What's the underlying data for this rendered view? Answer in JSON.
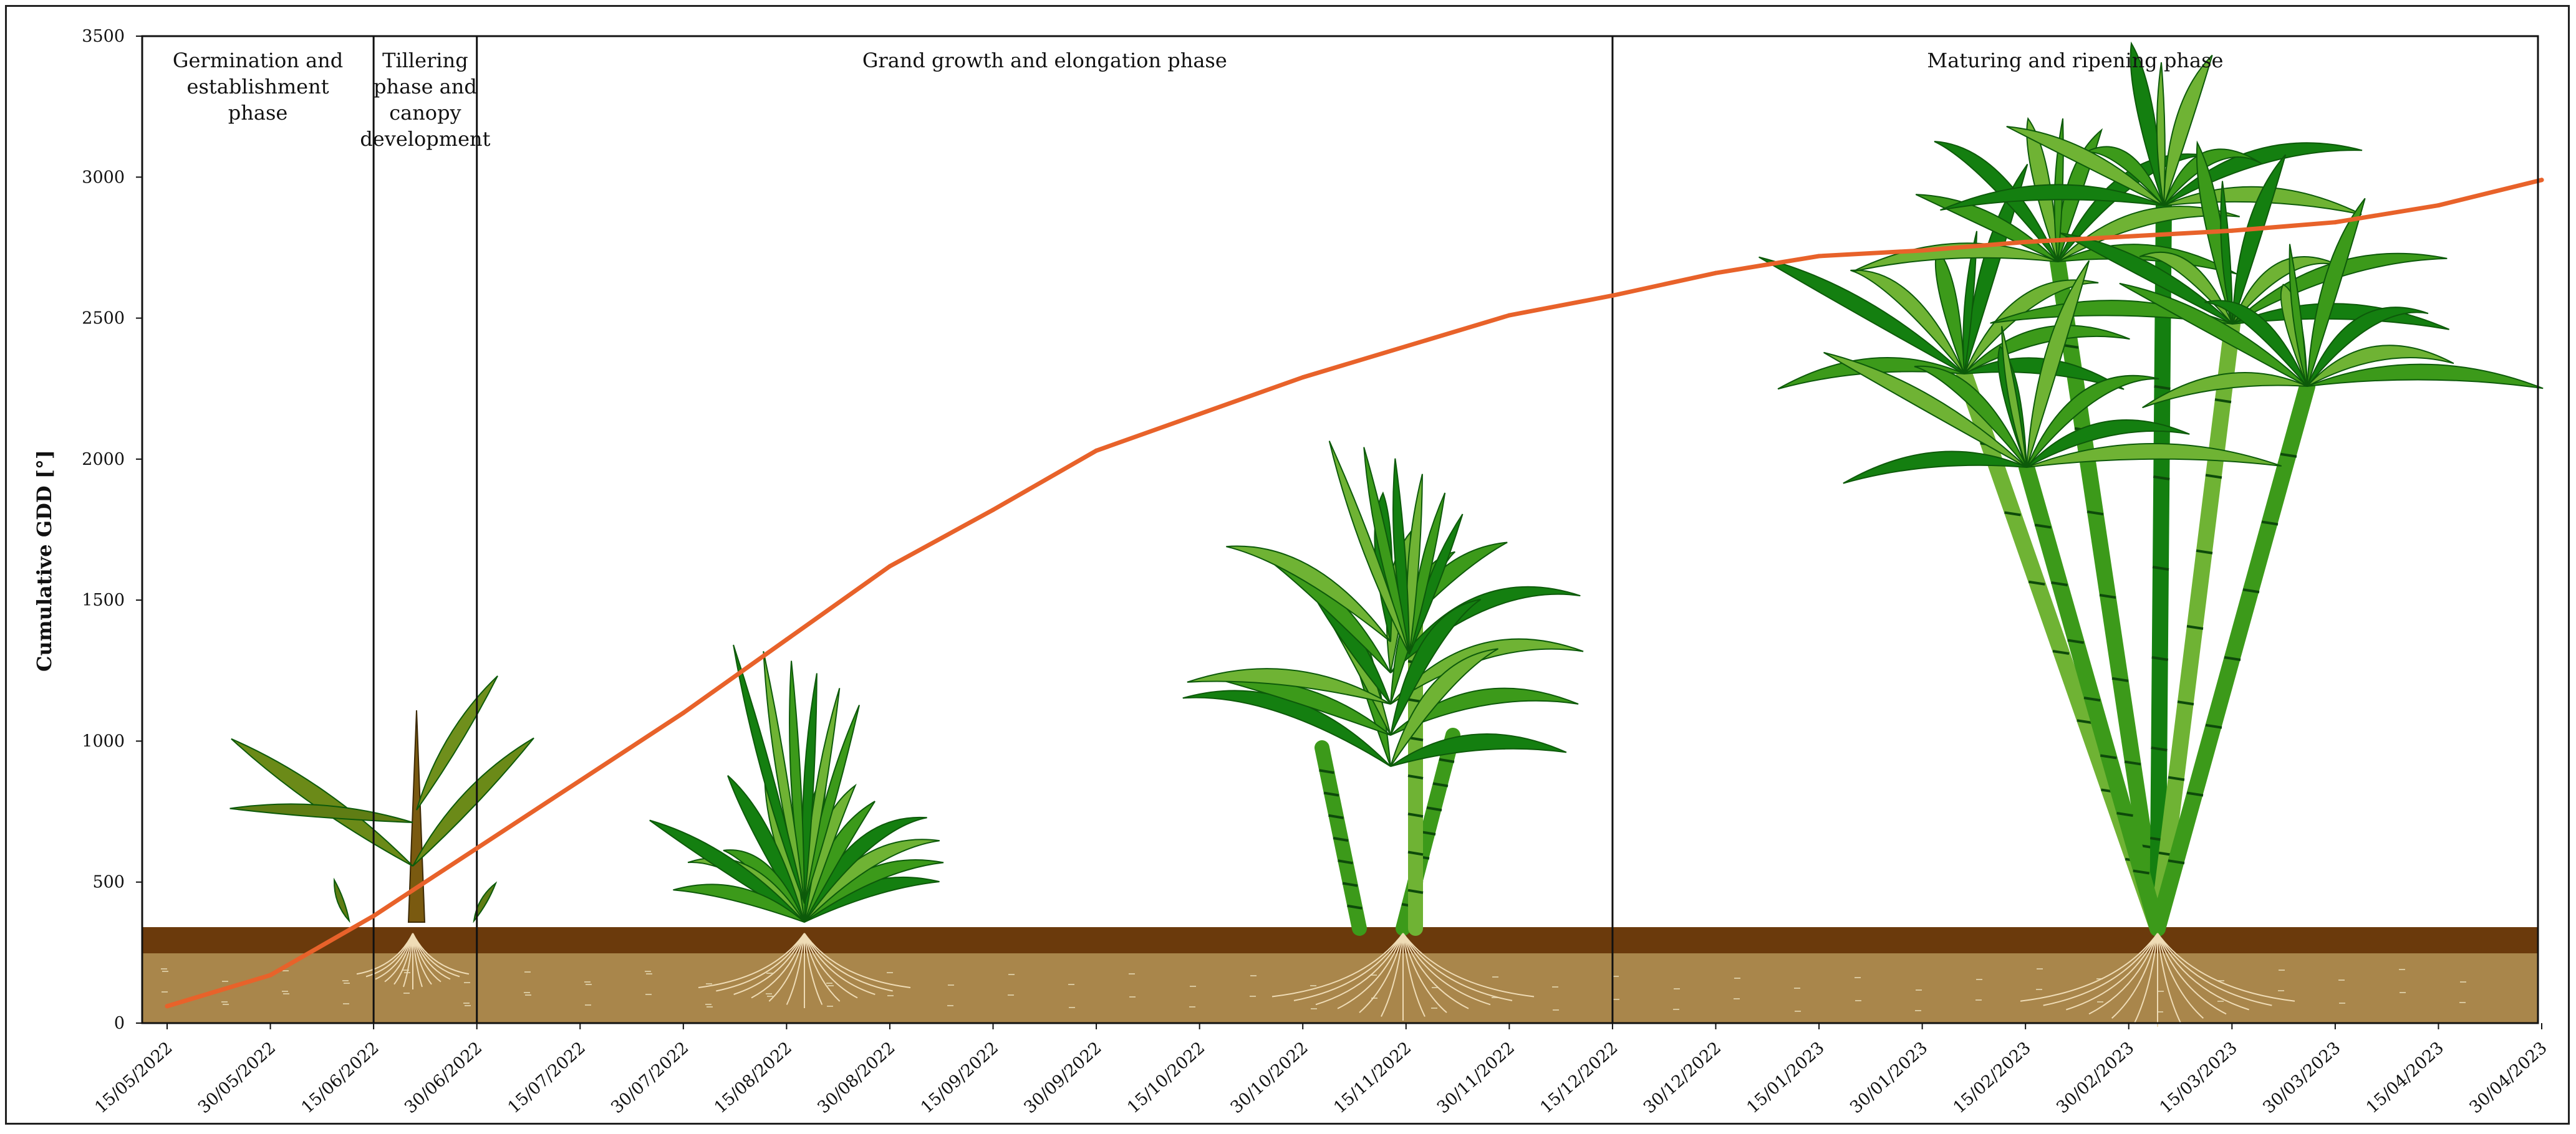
{
  "chart_data": {
    "type": "line",
    "title": "",
    "xlabel": "",
    "ylabel": "Cumulative GDD [°]",
    "ylim": [
      0,
      3500
    ],
    "yticks": [
      "0",
      "500",
      "1000",
      "1500",
      "2000",
      "2500",
      "3000",
      "3500"
    ],
    "xticks": [
      "15/05/2022",
      "30/05/2022",
      "15/06/2022",
      "30/06/2022",
      "15/07/2022",
      "30/07/2022",
      "15/08/2022",
      "30/08/2022",
      "15/09/2022",
      "30/09/2022",
      "15/10/2022",
      "30/10/2022",
      "15/11/2022",
      "30/11/2022",
      "15/12/2022",
      "30/12/2022",
      "15/01/2023",
      "30/01/2023",
      "15/02/2023",
      "30/02/2023",
      "15/03/2023",
      "30/03/2023",
      "15/04/2023",
      "30/04/2023"
    ],
    "series": [
      {
        "color": "#e8622a",
        "x": [
          "15/05/2022",
          "30/05/2022",
          "15/06/2022",
          "30/06/2022",
          "15/07/2022",
          "30/07/2022",
          "15/08/2022",
          "30/08/2022",
          "15/09/2022",
          "30/09/2022",
          "15/10/2022",
          "30/10/2022",
          "15/11/2022",
          "30/11/2022",
          "15/12/2022",
          "30/12/2022",
          "15/01/2023",
          "30/01/2023",
          "15/02/2023",
          "30/02/2023",
          "15/03/2023",
          "30/03/2023",
          "15/04/2023",
          "30/04/2023"
        ],
        "values": [
          60,
          170,
          380,
          620,
          860,
          1100,
          1360,
          1620,
          1820,
          2030,
          2160,
          2290,
          2400,
          2510,
          2580,
          2660,
          2720,
          2740,
          2770,
          2790,
          2810,
          2840,
          2900,
          2990
        ]
      }
    ],
    "phases": [
      {
        "label_lines": [
          "Germination and",
          "establishment",
          "phase"
        ],
        "start": "15/05/2022",
        "end": "15/06/2022"
      },
      {
        "label_lines": [
          "Tillering",
          "phase and",
          "canopy",
          "development"
        ],
        "start": "15/06/2022",
        "end": "30/06/2022"
      },
      {
        "label_lines": [
          "Grand growth and elongation phase"
        ],
        "start": "30/06/2022",
        "end": "15/12/2022"
      },
      {
        "label_lines": [
          "Maturing and ripening phase"
        ],
        "start": "15/12/2022",
        "end": "30/04/2023"
      }
    ],
    "grid": false,
    "legend": "none",
    "colors": {
      "line": "#e8622a",
      "topsoil": "#6b3a0c",
      "soil": "#a9864b",
      "leaf_dark": "#147f10",
      "leaf_mid": "#3c9a1a",
      "leaf_light": "#6fb334",
      "root": "#efdcb6"
    }
  }
}
